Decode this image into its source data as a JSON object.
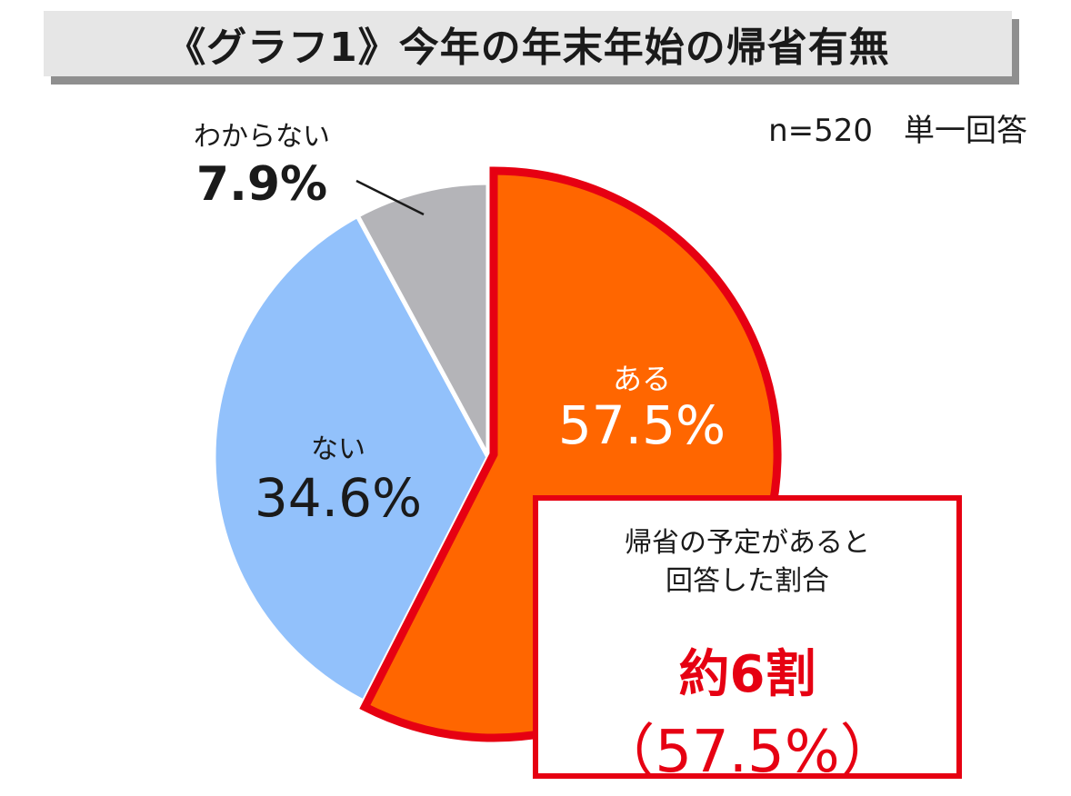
{
  "title": "《グラフ1》今年の年末年始の帰省有無",
  "sample_note": "n=520　単一回答",
  "chart_data": {
    "type": "pie",
    "slices": [
      {
        "label": "ある",
        "value": 57.5,
        "display": "57.5%",
        "color": "#ff6600"
      },
      {
        "label": "ない",
        "value": 34.6,
        "display": "34.6%",
        "color": "#92c1fb"
      },
      {
        "label": "わからない",
        "value": 7.9,
        "display": "7.9%",
        "color": "#b4b4b8"
      }
    ],
    "highlight": {
      "slice": "ある",
      "outline_color": "#e60012"
    },
    "start": "12 o'clock, clockwise"
  },
  "callout": {
    "caption": "帰省の予定があると\n回答した割合",
    "value": "約6割",
    "percent": "（57.5%）"
  }
}
